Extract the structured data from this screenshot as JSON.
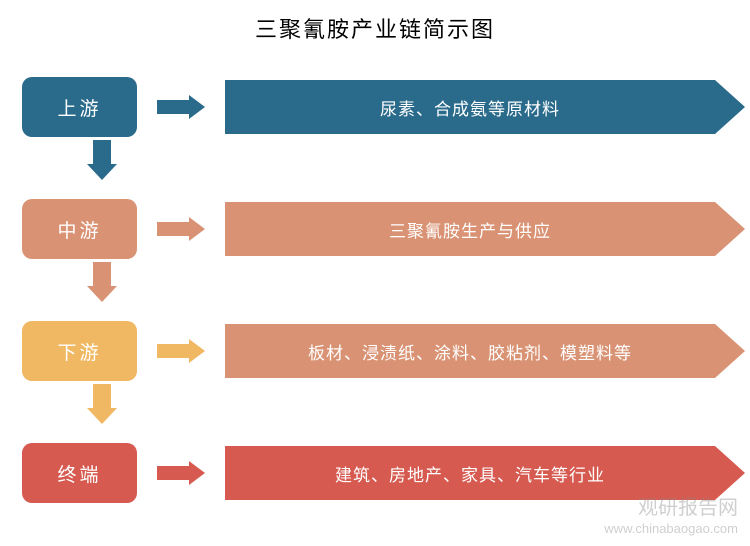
{
  "title": "三聚氰胺产业链简示图",
  "stages": [
    {
      "label": "上游",
      "content": "尿素、合成氨等原材料",
      "box_color": "#2a6b8c",
      "arrow_color": "#2a6b8c",
      "content_color": "#2a6b8c",
      "content_width": 490
    },
    {
      "label": "中游",
      "content": "三聚氰胺生产与供应",
      "box_color": "#d99374",
      "arrow_color": "#d99374",
      "content_color": "#d99374",
      "content_width": 490
    },
    {
      "label": "下游",
      "content": "板材、浸渍纸、涂料、胶粘剂、模塑料等",
      "box_color": "#f0b862",
      "arrow_color": "#f0b862",
      "content_color": "#d99374",
      "content_width": 490
    },
    {
      "label": "终端",
      "content": "建筑、房地产、家具、汽车等行业",
      "box_color": "#d65a4f",
      "arrow_color": "#d65a4f",
      "content_color": "#d65a4f",
      "content_width": 490
    }
  ],
  "v_arrows": [
    {
      "color": "#2a6b8c"
    },
    {
      "color": "#d99374"
    },
    {
      "color": "#f0b862"
    }
  ],
  "watermark": {
    "title": "观研报告网",
    "url": "www.chinabaogao.com"
  },
  "background_color": "#ffffff",
  "title_fontsize": 22,
  "stage_fontsize": 19,
  "content_fontsize": 17
}
